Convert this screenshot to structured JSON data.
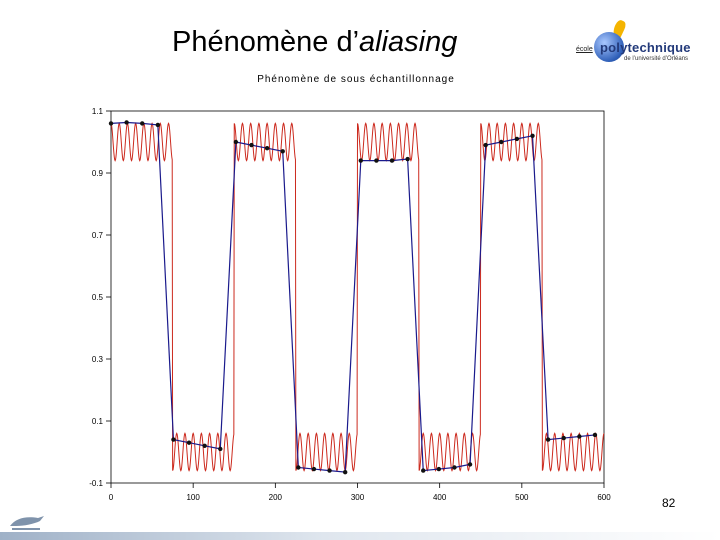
{
  "slide": {
    "title_regular": "Phénomène d’",
    "title_italic": "aliasing",
    "page_number": "82"
  },
  "logo": {
    "ecole": "école",
    "name": "polytechnique",
    "subtitle": "de l’université d’Orléans"
  },
  "icons": [
    "flame-icon",
    "globe-icon",
    "university-bird-icon"
  ],
  "chart_data": {
    "type": "line",
    "title": "Phénomène de sous échantillonnage",
    "xlabel": "",
    "ylabel": "",
    "xlim": [
      0,
      600
    ],
    "ylim": [
      -0.1,
      1.1
    ],
    "xticks": [
      "0",
      "100",
      "200",
      "300",
      "400",
      "500",
      "600"
    ],
    "yticks": [
      "-0.1",
      "0.1",
      "0.3",
      "0.5",
      "0.7",
      "0.9",
      "1.1"
    ],
    "grid": false,
    "legend": "none",
    "colors": {
      "continuous": "#cc2a1e",
      "sampled": "#1a1a8c"
    },
    "continuous": {
      "period": 150,
      "high_x": [
        [
          0,
          75
        ],
        [
          150,
          225
        ],
        [
          300,
          375
        ],
        [
          450,
          525
        ]
      ],
      "ripple_frequency_per_unit": 0.1,
      "ripple_amplitude": 0.06,
      "high_level": 1.0,
      "low_level": 0.0
    },
    "sampled_series": {
      "x": [
        0,
        19,
        38,
        57,
        76,
        95,
        114,
        133,
        152,
        171,
        190,
        209,
        228,
        247,
        266,
        285,
        304,
        323,
        342,
        361,
        380,
        399,
        418,
        437,
        456,
        475,
        494,
        513,
        532,
        551,
        570,
        589
      ],
      "y": [
        1.06,
        1.063,
        1.06,
        1.055,
        0.04,
        0.03,
        0.02,
        0.01,
        1.0,
        0.99,
        0.98,
        0.97,
        -0.05,
        -0.055,
        -0.06,
        -0.065,
        0.94,
        0.94,
        0.94,
        0.945,
        -0.06,
        -0.055,
        -0.05,
        -0.04,
        0.99,
        1.0,
        1.01,
        1.02,
        0.04,
        0.045,
        0.05,
        0.055
      ]
    }
  }
}
